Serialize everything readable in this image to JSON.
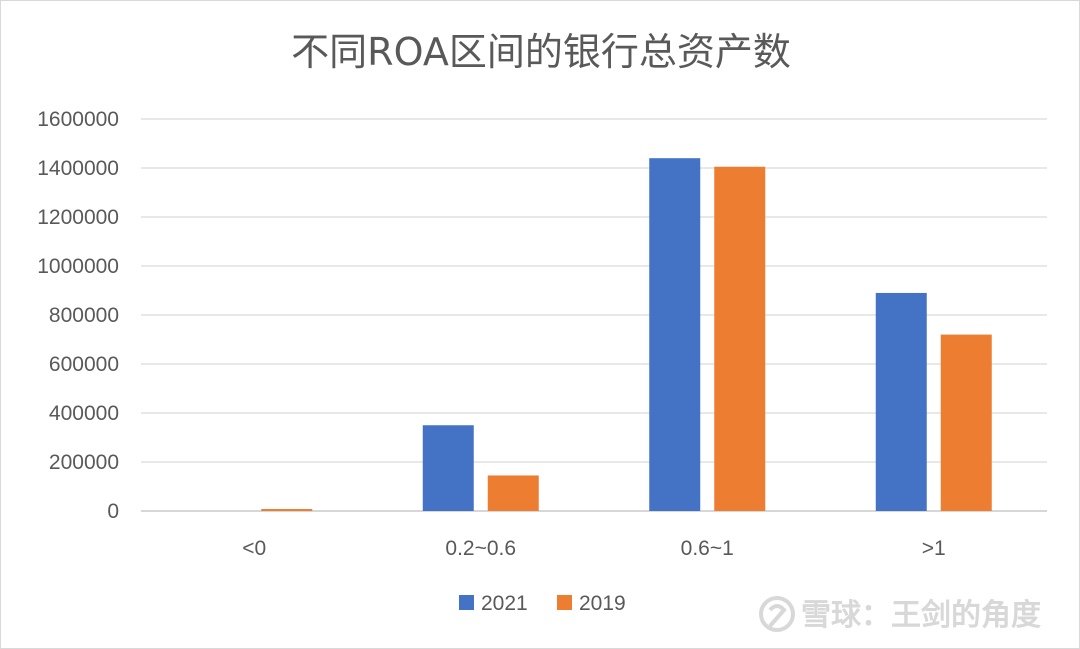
{
  "chart_data": {
    "type": "bar",
    "title": "不同ROA区间的银行总资产数",
    "xlabel": "",
    "ylabel": "",
    "categories": [
      "<0",
      "0.2~0.6",
      "0.6~1",
      ">1"
    ],
    "series": [
      {
        "name": "2021",
        "color": "#4472C4",
        "values": [
          0,
          350000,
          1440000,
          890000
        ]
      },
      {
        "name": "2019",
        "color": "#ED7D31",
        "values": [
          8000,
          145000,
          1405000,
          720000
        ]
      }
    ],
    "ylim": [
      0,
      1600000
    ],
    "yticks": [
      "0",
      "200000",
      "400000",
      "600000",
      "800000",
      "1000000",
      "1200000",
      "1400000",
      "1600000"
    ],
    "grid": true,
    "legend_position": "bottom"
  },
  "watermark": {
    "text": "雪球：王剑的角度",
    "icon": "snowball-logo-icon"
  }
}
